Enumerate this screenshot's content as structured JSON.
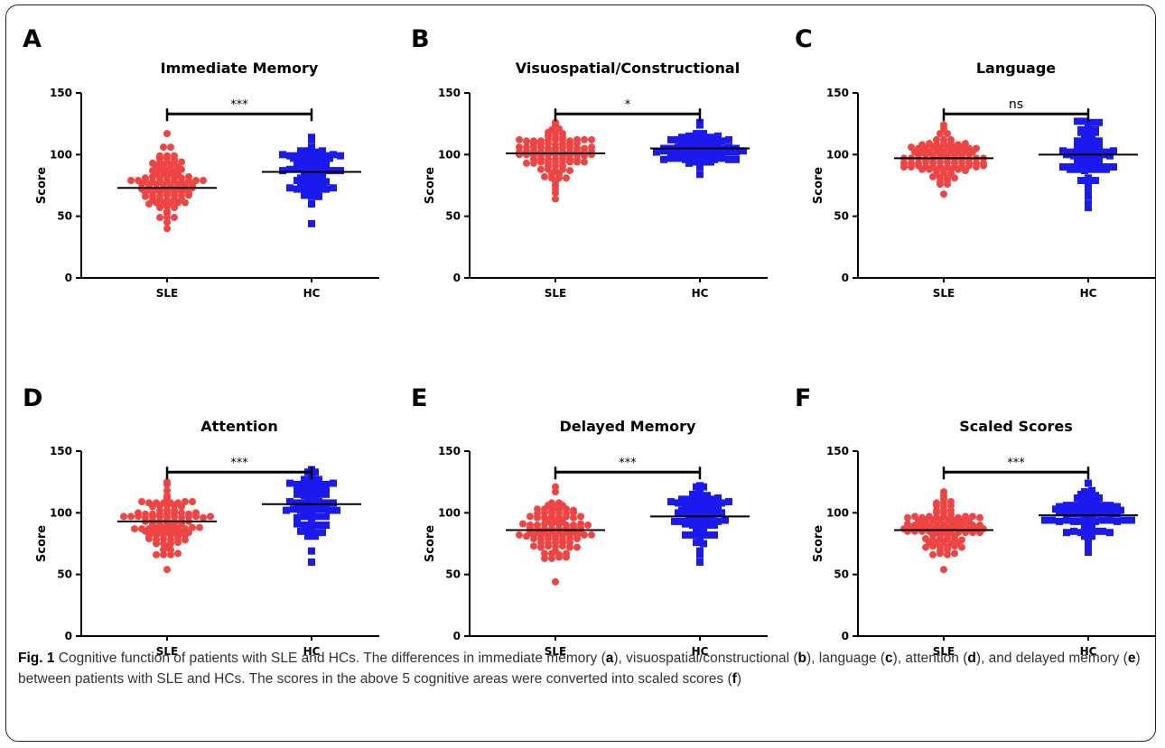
{
  "figure": {
    "caption": {
      "fig_label": "Fig. 1",
      "text_1": " Cognitive function of patients with SLE and HCs. The differences in immediate memory (",
      "a": "a",
      "text_2": "), visuospatial/constructional (",
      "b": "b",
      "text_3": "), language (",
      "c": "c",
      "text_4": "), attention (",
      "d": "d",
      "text_5": "), and delayed memory (",
      "e": "e",
      "text_6": ") between patients with SLE and HCs. The scores in the above 5 cognitive areas were converted into scaled scores (",
      "f": "f",
      "text_7": ")"
    }
  },
  "colors": {
    "sle": "#ef4444",
    "hc": "#1a1aef",
    "axis": "#000000"
  },
  "chart_data": [
    {
      "panel": "A",
      "type": "scatter",
      "title": "Immediate Memory",
      "ylabel": "Score",
      "categories": [
        "SLE",
        "HC"
      ],
      "ylim": [
        0,
        150
      ],
      "yticks": [
        0,
        50,
        100,
        150
      ],
      "significance": "***",
      "series": [
        {
          "name": "SLE",
          "marker": "circle",
          "mean": 73,
          "min": 40,
          "max": 117,
          "n": 96
        },
        {
          "name": "HC",
          "marker": "square",
          "mean": 86,
          "min": 44,
          "max": 114,
          "n": 72
        }
      ]
    },
    {
      "panel": "B",
      "type": "scatter",
      "title": "Visuospatial/Constructional",
      "ylabel": "Score",
      "categories": [
        "SLE",
        "HC"
      ],
      "ylim": [
        0,
        150
      ],
      "yticks": [
        0,
        50,
        100,
        150
      ],
      "significance": "*",
      "series": [
        {
          "name": "SLE",
          "marker": "circle",
          "mean": 101,
          "min": 64,
          "max": 126,
          "n": 96
        },
        {
          "name": "HC",
          "marker": "square",
          "mean": 105,
          "min": 84,
          "max": 126,
          "n": 72
        }
      ]
    },
    {
      "panel": "C",
      "type": "scatter",
      "title": "Language",
      "ylabel": "Score",
      "categories": [
        "SLE",
        "HC"
      ],
      "ylim": [
        0,
        150
      ],
      "yticks": [
        0,
        50,
        100,
        150
      ],
      "significance": "ns",
      "series": [
        {
          "name": "SLE",
          "marker": "circle",
          "mean": 97,
          "min": 68,
          "max": 124,
          "n": 96
        },
        {
          "name": "HC",
          "marker": "square",
          "mean": 100,
          "min": 57,
          "max": 127,
          "n": 72
        }
      ]
    },
    {
      "panel": "D",
      "type": "scatter",
      "title": "Attention",
      "ylabel": "Score",
      "categories": [
        "SLE",
        "HC"
      ],
      "ylim": [
        0,
        150
      ],
      "yticks": [
        0,
        50,
        100,
        150
      ],
      "significance": "***",
      "series": [
        {
          "name": "SLE",
          "marker": "circle",
          "mean": 93,
          "min": 54,
          "max": 125,
          "n": 96
        },
        {
          "name": "HC",
          "marker": "square",
          "mean": 107,
          "min": 60,
          "max": 135,
          "n": 72
        }
      ]
    },
    {
      "panel": "E",
      "type": "scatter",
      "title": "Delayed Memory",
      "ylabel": "Score",
      "categories": [
        "SLE",
        "HC"
      ],
      "ylim": [
        0,
        150
      ],
      "yticks": [
        0,
        50,
        100,
        150
      ],
      "significance": "***",
      "series": [
        {
          "name": "SLE",
          "marker": "circle",
          "mean": 86,
          "min": 44,
          "max": 121,
          "n": 96
        },
        {
          "name": "HC",
          "marker": "square",
          "mean": 97,
          "min": 60,
          "max": 122,
          "n": 72
        }
      ]
    },
    {
      "panel": "F",
      "type": "scatter",
      "title": "Scaled Scores",
      "ylabel": "Score",
      "categories": [
        "SLE",
        "HC"
      ],
      "ylim": [
        0,
        150
      ],
      "yticks": [
        0,
        50,
        100,
        150
      ],
      "significance": "***",
      "series": [
        {
          "name": "SLE",
          "marker": "circle",
          "mean": 86,
          "min": 54,
          "max": 117,
          "n": 96
        },
        {
          "name": "HC",
          "marker": "square",
          "mean": 98,
          "min": 68,
          "max": 124,
          "n": 72
        }
      ]
    }
  ]
}
